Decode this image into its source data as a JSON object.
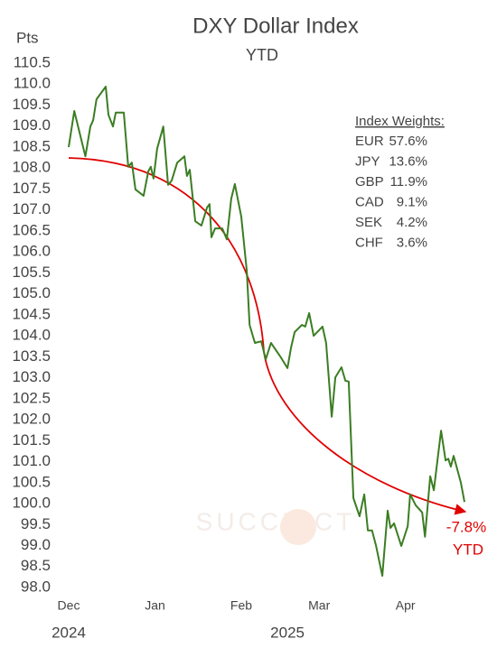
{
  "chart_data": {
    "type": "line",
    "title": "DXY Dollar Index",
    "subtitle": "YTD",
    "y_axis_label": "Pts",
    "x": [
      0,
      2,
      3.6,
      6,
      7.8,
      8.8,
      10,
      13.3,
      14.3,
      15.9,
      16.9,
      19.8,
      21.4,
      22.7,
      24,
      26.9,
      28.6,
      29.5,
      30.5,
      31.8,
      34,
      35.7,
      37,
      39,
      41.6,
      42.5,
      43.5,
      45.5,
      47.7,
      49.7,
      50.6,
      51.3,
      52.6,
      55.2,
      56.8,
      58.4,
      59.7,
      62,
      64,
      65,
      66.9,
      69.2,
      70.8,
      72.7,
      76,
      78.6,
      79.9,
      81.2,
      83.8,
      85,
      86.4,
      88,
      91.2,
      92.5,
      94.5,
      95.8,
      98,
      99.4,
      100.6,
      102.3,
      104.5,
      106.2,
      107.5,
      109,
      110.4,
      112.7,
      114.6,
      115.6,
      116.9,
      119.5,
      121.8,
      122.7,
      124.7,
      127,
      128,
      129.9,
      131.2,
      133.8,
      135.4,
      136.4,
      137.3,
      138.3,
      140.9,
      142.2
    ],
    "series": [
      {
        "color": "#3b7d23",
        "values": [
          108.5,
          109.36,
          108.93,
          108.28,
          108.99,
          109.14,
          109.64,
          109.94,
          109.27,
          108.99,
          109.32,
          109.32,
          108.03,
          108.13,
          107.49,
          107.34,
          107.92,
          108.03,
          107.75,
          108.46,
          108.99,
          107.6,
          107.7,
          108.13,
          108.28,
          107.81,
          107.96,
          106.73,
          106.63,
          107.06,
          107.14,
          106.35,
          106.56,
          106.56,
          106.3,
          107.27,
          107.62,
          106.84,
          105.55,
          104.26,
          103.83,
          103.87,
          103.44,
          103.83,
          103.51,
          103.23,
          103.72,
          104.09,
          104.26,
          104.22,
          104.54,
          104.0,
          104.22,
          103.83,
          102.07,
          103.01,
          103.25,
          102.93,
          102.91,
          100.13,
          99.7,
          100.22,
          99.36,
          99.36,
          99.01,
          98.28,
          99.83,
          99.42,
          99.53,
          98.99,
          99.46,
          100.22,
          99.96,
          99.79,
          99.21,
          100.65,
          100.32,
          101.74,
          101.03,
          101.07,
          100.88,
          101.14,
          100.5,
          100.04
        ]
      }
    ],
    "xlim": [
      -5,
      146
    ],
    "xticks": [
      {
        "value": 0,
        "label": "Dec"
      },
      {
        "value": 31,
        "label": "Jan"
      },
      {
        "value": 62,
        "label": "Feb"
      },
      {
        "value": 90,
        "label": "Mar"
      },
      {
        "value": 121,
        "label": "Apr"
      }
    ],
    "year_labels": [
      {
        "value": 0,
        "label": "2024"
      },
      {
        "value": 78.6,
        "label": "2025"
      }
    ],
    "ylim": [
      97.8,
      110.7
    ],
    "yticks": [
      {
        "value": 98,
        "label": "98.0"
      },
      98.5,
      {
        "value": 99,
        "label": "99.0"
      },
      99.5,
      {
        "value": 100,
        "label": "100.0"
      },
      100.5,
      {
        "value": 101,
        "label": "101.0"
      },
      101.5,
      {
        "value": 102,
        "label": "102.0"
      },
      102.5,
      {
        "value": 103,
        "label": "103.0"
      },
      103.5,
      {
        "value": 104,
        "label": "104.0"
      },
      104.5,
      {
        "value": 105,
        "label": "105.0"
      },
      105.5,
      {
        "value": 106,
        "label": "106.0"
      },
      106.5,
      {
        "value": 107,
        "label": "107.0"
      },
      107.5,
      {
        "value": 108,
        "label": "108.0"
      },
      108.5,
      {
        "value": 109,
        "label": "109.0"
      },
      109.5,
      {
        "value": 110,
        "label": "110.0"
      },
      110.5
    ],
    "grid": false,
    "annotation_change": "-7.8%",
    "annotation_period": "YTD",
    "trend_color": "#e00000",
    "weights_title": "Index Weights:",
    "weights": [
      [
        "EUR",
        "57.6%"
      ],
      [
        "JPY",
        "13.6%"
      ],
      [
        "GBP",
        "11.9%"
      ],
      [
        "CAD",
        "9.1%"
      ],
      [
        "SEK",
        "4.2%"
      ],
      [
        "CHF",
        "3.6%"
      ]
    ],
    "watermark": "SUCCINCT"
  }
}
